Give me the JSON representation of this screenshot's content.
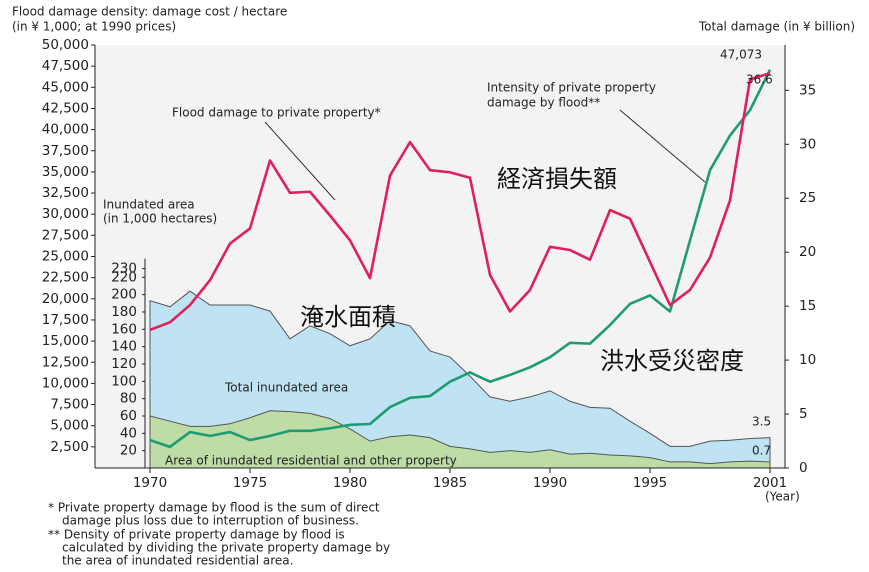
{
  "chart_data": {
    "type": "combo",
    "ylabel": [
      "Flood damage density: damage cost / hectare",
      "(in ¥ 1,000; at 1990 prices)"
    ],
    "y2label": "Total damage (in ¥ billion)",
    "y3label": [
      "Inundated area",
      "(in 1,000 hectares)"
    ],
    "xlabel": "(Year)",
    "x": [
      1970,
      1971,
      1972,
      1973,
      1974,
      1975,
      1976,
      1977,
      1978,
      1979,
      1980,
      1981,
      1982,
      1983,
      1984,
      1985,
      1986,
      1987,
      1988,
      1989,
      1990,
      1991,
      1992,
      1993,
      1994,
      1995,
      1996,
      1997,
      1998,
      1999,
      2000,
      2001
    ],
    "xlim": [
      1967.25,
      2001.75
    ],
    "xticks": [
      1970,
      1975,
      1980,
      1985,
      1990,
      1995,
      2001
    ],
    "ylim": [
      0,
      50000
    ],
    "yticks": [
      {
        "value": 2500,
        "label": "2,500"
      },
      {
        "value": 5000,
        "label": "5,000"
      },
      {
        "value": 7500,
        "label": "7,500"
      },
      {
        "value": 10000,
        "label": "10,000"
      },
      {
        "value": 12500,
        "label": "12,500"
      },
      {
        "value": 15000,
        "label": "15,000"
      },
      {
        "value": 17500,
        "label": "17,500"
      },
      {
        "value": 20000,
        "label": "20,000"
      },
      {
        "value": 22500,
        "label": "22,500"
      },
      {
        "value": 25000,
        "label": "25,000"
      },
      {
        "value": 27500,
        "label": "27,500"
      },
      {
        "value": 30000,
        "label": "30,000"
      },
      {
        "value": 32500,
        "label": "32,500"
      },
      {
        "value": 35000,
        "label": "35,000"
      },
      {
        "value": 37500,
        "label": "37,500"
      },
      {
        "value": 40000,
        "label": "40,000"
      },
      {
        "value": 42500,
        "label": "42,500"
      },
      {
        "value": 45000,
        "label": "45,000"
      },
      {
        "value": 47500,
        "label": "47,500"
      },
      {
        "value": 50000,
        "label": "50,000"
      }
    ],
    "y2lim": [
      0,
      39.2
    ],
    "y2ticks": [
      0,
      5,
      10,
      15,
      20,
      25,
      30,
      35
    ],
    "y3lim": [
      0,
      488
    ],
    "y3ticks": [
      20,
      40,
      60,
      80,
      100,
      120,
      140,
      160,
      180,
      200,
      220,
      230
    ],
    "series": [
      {
        "name": "Total inundated area",
        "kind": "area",
        "axis": "y3",
        "color": "#bfe3f2",
        "values": [
          193,
          186,
          204,
          188,
          188,
          188,
          181,
          149,
          164,
          155,
          141,
          149,
          170,
          164,
          135,
          128,
          106,
          82,
          77,
          82,
          89,
          77,
          70,
          69,
          54,
          40,
          25,
          25,
          31,
          32,
          34,
          35
        ]
      },
      {
        "name": "Area of inundated residential and other property",
        "kind": "area",
        "axis": "y3",
        "color": "#bddca6",
        "values": [
          60,
          54,
          48,
          48,
          51,
          58,
          66,
          65,
          63,
          57,
          45,
          31,
          36,
          38,
          35,
          25,
          22,
          18,
          20,
          18,
          21,
          16,
          17,
          15,
          14,
          12,
          7,
          7,
          5,
          7,
          8,
          7
        ]
      },
      {
        "name": [
          "Intensity of private property",
          "damage by flood**"
        ],
        "kind": "line",
        "axis": "y",
        "color": "#1e9b72",
        "values": [
          3300,
          2500,
          4250,
          3800,
          4250,
          3300,
          3800,
          4400,
          4400,
          4700,
          5100,
          5200,
          7200,
          8300,
          8500,
          10200,
          11300,
          10200,
          11000,
          11900,
          13100,
          14800,
          14700,
          16900,
          19400,
          20400,
          18500,
          26900,
          35200,
          39300,
          42300,
          47073
        ]
      },
      {
        "name": "Flood damage to private property*",
        "kind": "line",
        "axis": "y2",
        "color": "#e0205a",
        "values": [
          12.8,
          13.5,
          15.1,
          17.4,
          20.8,
          22.2,
          28.5,
          25.5,
          25.6,
          23.4,
          21.1,
          17.6,
          27.1,
          30.2,
          27.6,
          27.4,
          26.9,
          17.9,
          14.5,
          16.5,
          20.5,
          20.2,
          19.3,
          23.9,
          23.1,
          19.1,
          15.1,
          16.5,
          19.5,
          24.8,
          36.0,
          36.6
        ]
      }
    ],
    "annotations": [
      "47,073",
      "36.6",
      "3.5",
      "0.7",
      "経済損失額",
      "淹水面積",
      "洪水受災密度"
    ],
    "notes": [
      "* Private property damage by flood is the sum of direct",
      "damage plus loss due to interruption of business.",
      "** Density of private property damage by flood is",
      "calculated by dividing the private property damage by",
      "the area of inundated residential area."
    ]
  }
}
